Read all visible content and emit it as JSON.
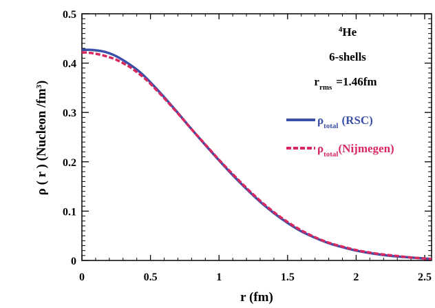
{
  "chart_data": {
    "type": "line",
    "title": "",
    "xlabel": "r (fm)",
    "ylabel": {
      "prefix": "ρ ( r ) (Nucleon /fm",
      "sup": "3",
      "suffix": ")"
    },
    "xlim": [
      0,
      2.55
    ],
    "ylim": [
      0,
      0.5
    ],
    "xticks": [
      0,
      0.5,
      1,
      1.5,
      2,
      2.5
    ],
    "xtick_labels": [
      "0",
      "0.5",
      "1",
      "1.5",
      "2",
      "2.5"
    ],
    "yticks": [
      0,
      0.1,
      0.2,
      0.3,
      0.4,
      0.5
    ],
    "ytick_labels": [
      "0",
      "0.1",
      "0.2",
      "0.3",
      "0.4",
      "0.5"
    ],
    "annotations": {
      "nucleus_sup": "4",
      "nucleus": "He",
      "shells": "6-shells",
      "rms_main": "r",
      "rms_sub": "rms",
      "rms_value": "=1.46fm"
    },
    "series": [
      {
        "name": "RSC",
        "legend_symbol": "ρ",
        "legend_sub": "total",
        "legend_label": "(RSC)",
        "color": "#3a4fa8",
        "style": "solid",
        "x": [
          0,
          0.05,
          0.1,
          0.15,
          0.2,
          0.25,
          0.3,
          0.35,
          0.4,
          0.45,
          0.5,
          0.6,
          0.7,
          0.8,
          0.9,
          1.0,
          1.1,
          1.2,
          1.3,
          1.4,
          1.5,
          1.6,
          1.7,
          1.8,
          1.9,
          2.0,
          2.1,
          2.2,
          2.3,
          2.4,
          2.5,
          2.55
        ],
        "y": [
          0.427,
          0.427,
          0.426,
          0.424,
          0.42,
          0.414,
          0.406,
          0.397,
          0.387,
          0.375,
          0.361,
          0.331,
          0.299,
          0.266,
          0.234,
          0.203,
          0.173,
          0.145,
          0.119,
          0.096,
          0.076,
          0.059,
          0.046,
          0.035,
          0.027,
          0.02,
          0.015,
          0.011,
          0.008,
          0.006,
          0.004,
          0.003
        ]
      },
      {
        "name": "Nijmegen",
        "legend_symbol": "ρ",
        "legend_sub": "total",
        "legend_label": "(Nijmegen)",
        "color": "#d8285f",
        "style": "dashed",
        "x": [
          0,
          0.05,
          0.1,
          0.15,
          0.2,
          0.25,
          0.3,
          0.35,
          0.4,
          0.45,
          0.5,
          0.6,
          0.7,
          0.8,
          0.9,
          1.0,
          1.1,
          1.2,
          1.3,
          1.4,
          1.5,
          1.6,
          1.7,
          1.8,
          1.9,
          2.0,
          2.1,
          2.2,
          2.3,
          2.4,
          2.5,
          2.55
        ],
        "y": [
          0.422,
          0.421,
          0.419,
          0.416,
          0.412,
          0.407,
          0.4,
          0.392,
          0.382,
          0.371,
          0.358,
          0.329,
          0.298,
          0.266,
          0.235,
          0.204,
          0.175,
          0.147,
          0.121,
          0.098,
          0.078,
          0.061,
          0.047,
          0.036,
          0.028,
          0.021,
          0.016,
          0.012,
          0.009,
          0.006,
          0.004,
          0.003
        ]
      }
    ]
  }
}
